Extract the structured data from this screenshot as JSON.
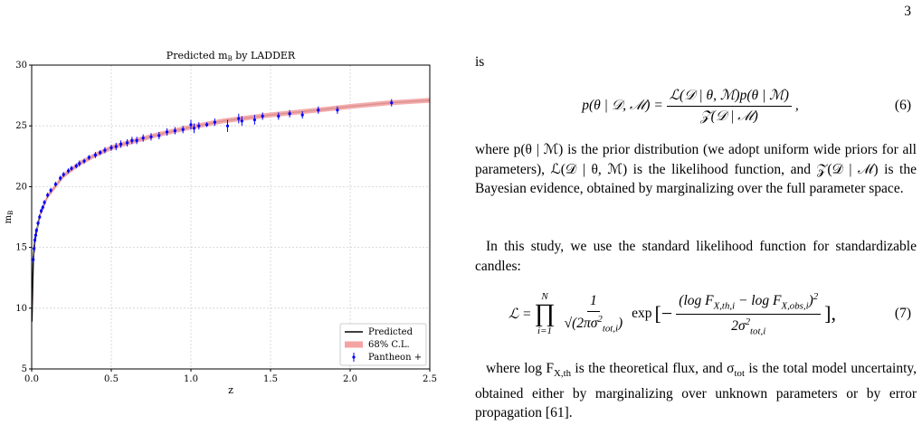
{
  "page_number": "3",
  "chart_data": {
    "type": "scatter",
    "title": "Predicted m_{B} by LADDER",
    "xlabel": "z",
    "ylabel": "m_{B}",
    "xlim": [
      0,
      2.5
    ],
    "ylim": [
      5,
      30
    ],
    "xticks": [
      {
        "value": 0,
        "label": "0.0"
      },
      0.5,
      {
        "value": 1,
        "label": "1.0"
      },
      1.5,
      {
        "value": 2,
        "label": "2.0"
      },
      2.5
    ],
    "yticks": [
      5,
      10,
      15,
      20,
      25,
      30
    ],
    "grid": true,
    "legend": "lower right",
    "series": [
      {
        "name": "Predicted",
        "kind": "line",
        "color": "#000000",
        "x": [
          0.001,
          0.01,
          0.02,
          0.05,
          0.1,
          0.2,
          0.3,
          0.4,
          0.5,
          0.6,
          0.8,
          1.0,
          1.2,
          1.5,
          1.8,
          2.0,
          2.25,
          2.5
        ],
        "values": [
          8.9,
          14.0,
          15.5,
          17.6,
          19.2,
          20.9,
          21.9,
          22.6,
          23.2,
          23.6,
          24.3,
          24.9,
          25.4,
          25.9,
          26.3,
          26.6,
          26.9,
          27.1
        ]
      },
      {
        "name": "68% C.L.",
        "kind": "band",
        "color": "#f4a3a3",
        "x": [
          0.001,
          0.01,
          0.02,
          0.05,
          0.1,
          0.2,
          0.3,
          0.4,
          0.5,
          0.6,
          0.8,
          1.0,
          1.2,
          1.5,
          1.8,
          2.0,
          2.25,
          2.5
        ],
        "lower": [
          8.7,
          13.8,
          15.3,
          17.4,
          19.0,
          20.7,
          21.7,
          22.4,
          23.0,
          23.4,
          24.1,
          24.7,
          25.2,
          25.7,
          26.1,
          26.4,
          26.7,
          26.9
        ],
        "upper": [
          9.1,
          14.2,
          15.7,
          17.8,
          19.4,
          21.1,
          22.1,
          22.8,
          23.4,
          23.8,
          24.5,
          25.1,
          25.6,
          26.1,
          26.5,
          26.8,
          27.1,
          27.3
        ]
      },
      {
        "name": "Pantheon +",
        "kind": "errorbar",
        "color": "#0000ff",
        "x": [
          0.01,
          0.015,
          0.02,
          0.025,
          0.03,
          0.04,
          0.05,
          0.06,
          0.07,
          0.08,
          0.1,
          0.12,
          0.15,
          0.18,
          0.2,
          0.23,
          0.25,
          0.28,
          0.3,
          0.33,
          0.36,
          0.4,
          0.43,
          0.46,
          0.5,
          0.53,
          0.56,
          0.6,
          0.63,
          0.66,
          0.7,
          0.75,
          0.8,
          0.85,
          0.9,
          0.95,
          1.0,
          1.02,
          1.05,
          1.1,
          1.15,
          1.23,
          1.3,
          1.32,
          1.4,
          1.45,
          1.55,
          1.62,
          1.7,
          1.8,
          1.92,
          2.26
        ],
        "values": [
          14.0,
          14.9,
          15.6,
          16.0,
          16.4,
          17.0,
          17.5,
          18.0,
          18.3,
          18.7,
          19.3,
          19.7,
          20.2,
          20.7,
          21.0,
          21.3,
          21.5,
          21.7,
          21.9,
          22.1,
          22.4,
          22.6,
          22.8,
          23.0,
          23.2,
          23.3,
          23.5,
          23.6,
          23.8,
          23.8,
          24.0,
          24.1,
          24.2,
          24.5,
          24.6,
          24.7,
          25.1,
          24.8,
          25.0,
          25.1,
          25.3,
          25.0,
          25.6,
          25.4,
          25.5,
          25.8,
          25.8,
          26.0,
          25.9,
          26.3,
          26.3,
          26.9
        ],
        "errors": [
          0.3,
          0.3,
          0.25,
          0.3,
          0.2,
          0.2,
          0.2,
          0.2,
          0.2,
          0.2,
          0.2,
          0.2,
          0.2,
          0.2,
          0.2,
          0.2,
          0.2,
          0.2,
          0.25,
          0.2,
          0.2,
          0.25,
          0.2,
          0.25,
          0.25,
          0.3,
          0.3,
          0.3,
          0.3,
          0.3,
          0.3,
          0.3,
          0.3,
          0.3,
          0.3,
          0.3,
          0.4,
          0.4,
          0.3,
          0.2,
          0.3,
          0.5,
          0.4,
          0.4,
          0.4,
          0.3,
          0.3,
          0.3,
          0.3,
          0.3,
          0.3,
          0.3
        ]
      }
    ]
  },
  "text": {
    "lead": "is",
    "eq6": {
      "lhs": "p(θ | 𝒟, ℳ) =",
      "num": "ℒ(𝒟 | θ, ℳ)p(θ | ℳ)",
      "den": "𝒵(𝒟 | ℳ)",
      "tail": ",",
      "number": "(6)"
    },
    "para1": "where p(θ | ℳ) is the prior distribution (we adopt uniform wide priors for all parameters), ℒ(𝒟 | θ, ℳ) is the likelihood function, and 𝒵(𝒟 | ℳ) is the Bayesian evidence, obtained by marginalizing over the full parameter space.",
    "para2": "In this study, we use the standard likelihood function for standardizable candles:",
    "eq7": {
      "lhs": "ℒ =",
      "prod": "∏",
      "prod_top": "N",
      "prod_bot": "i=1",
      "f1_num": "1",
      "f1_den": "√(2πσ^{2}_{tot,i})",
      "exp": "exp",
      "open": "[−",
      "f2_num": "(log F_{X,th,i} − log F_{X,obs,i})^{2}",
      "f2_den": "2σ^{2}_{tot,i}",
      "close": "],",
      "number": "(7)"
    },
    "para3": "where log F_{X,th} is the theoretical flux, and σ_{tot} is the total model uncertainty, obtained either by marginalizing over unknown parameters or by error propagation [61]."
  }
}
